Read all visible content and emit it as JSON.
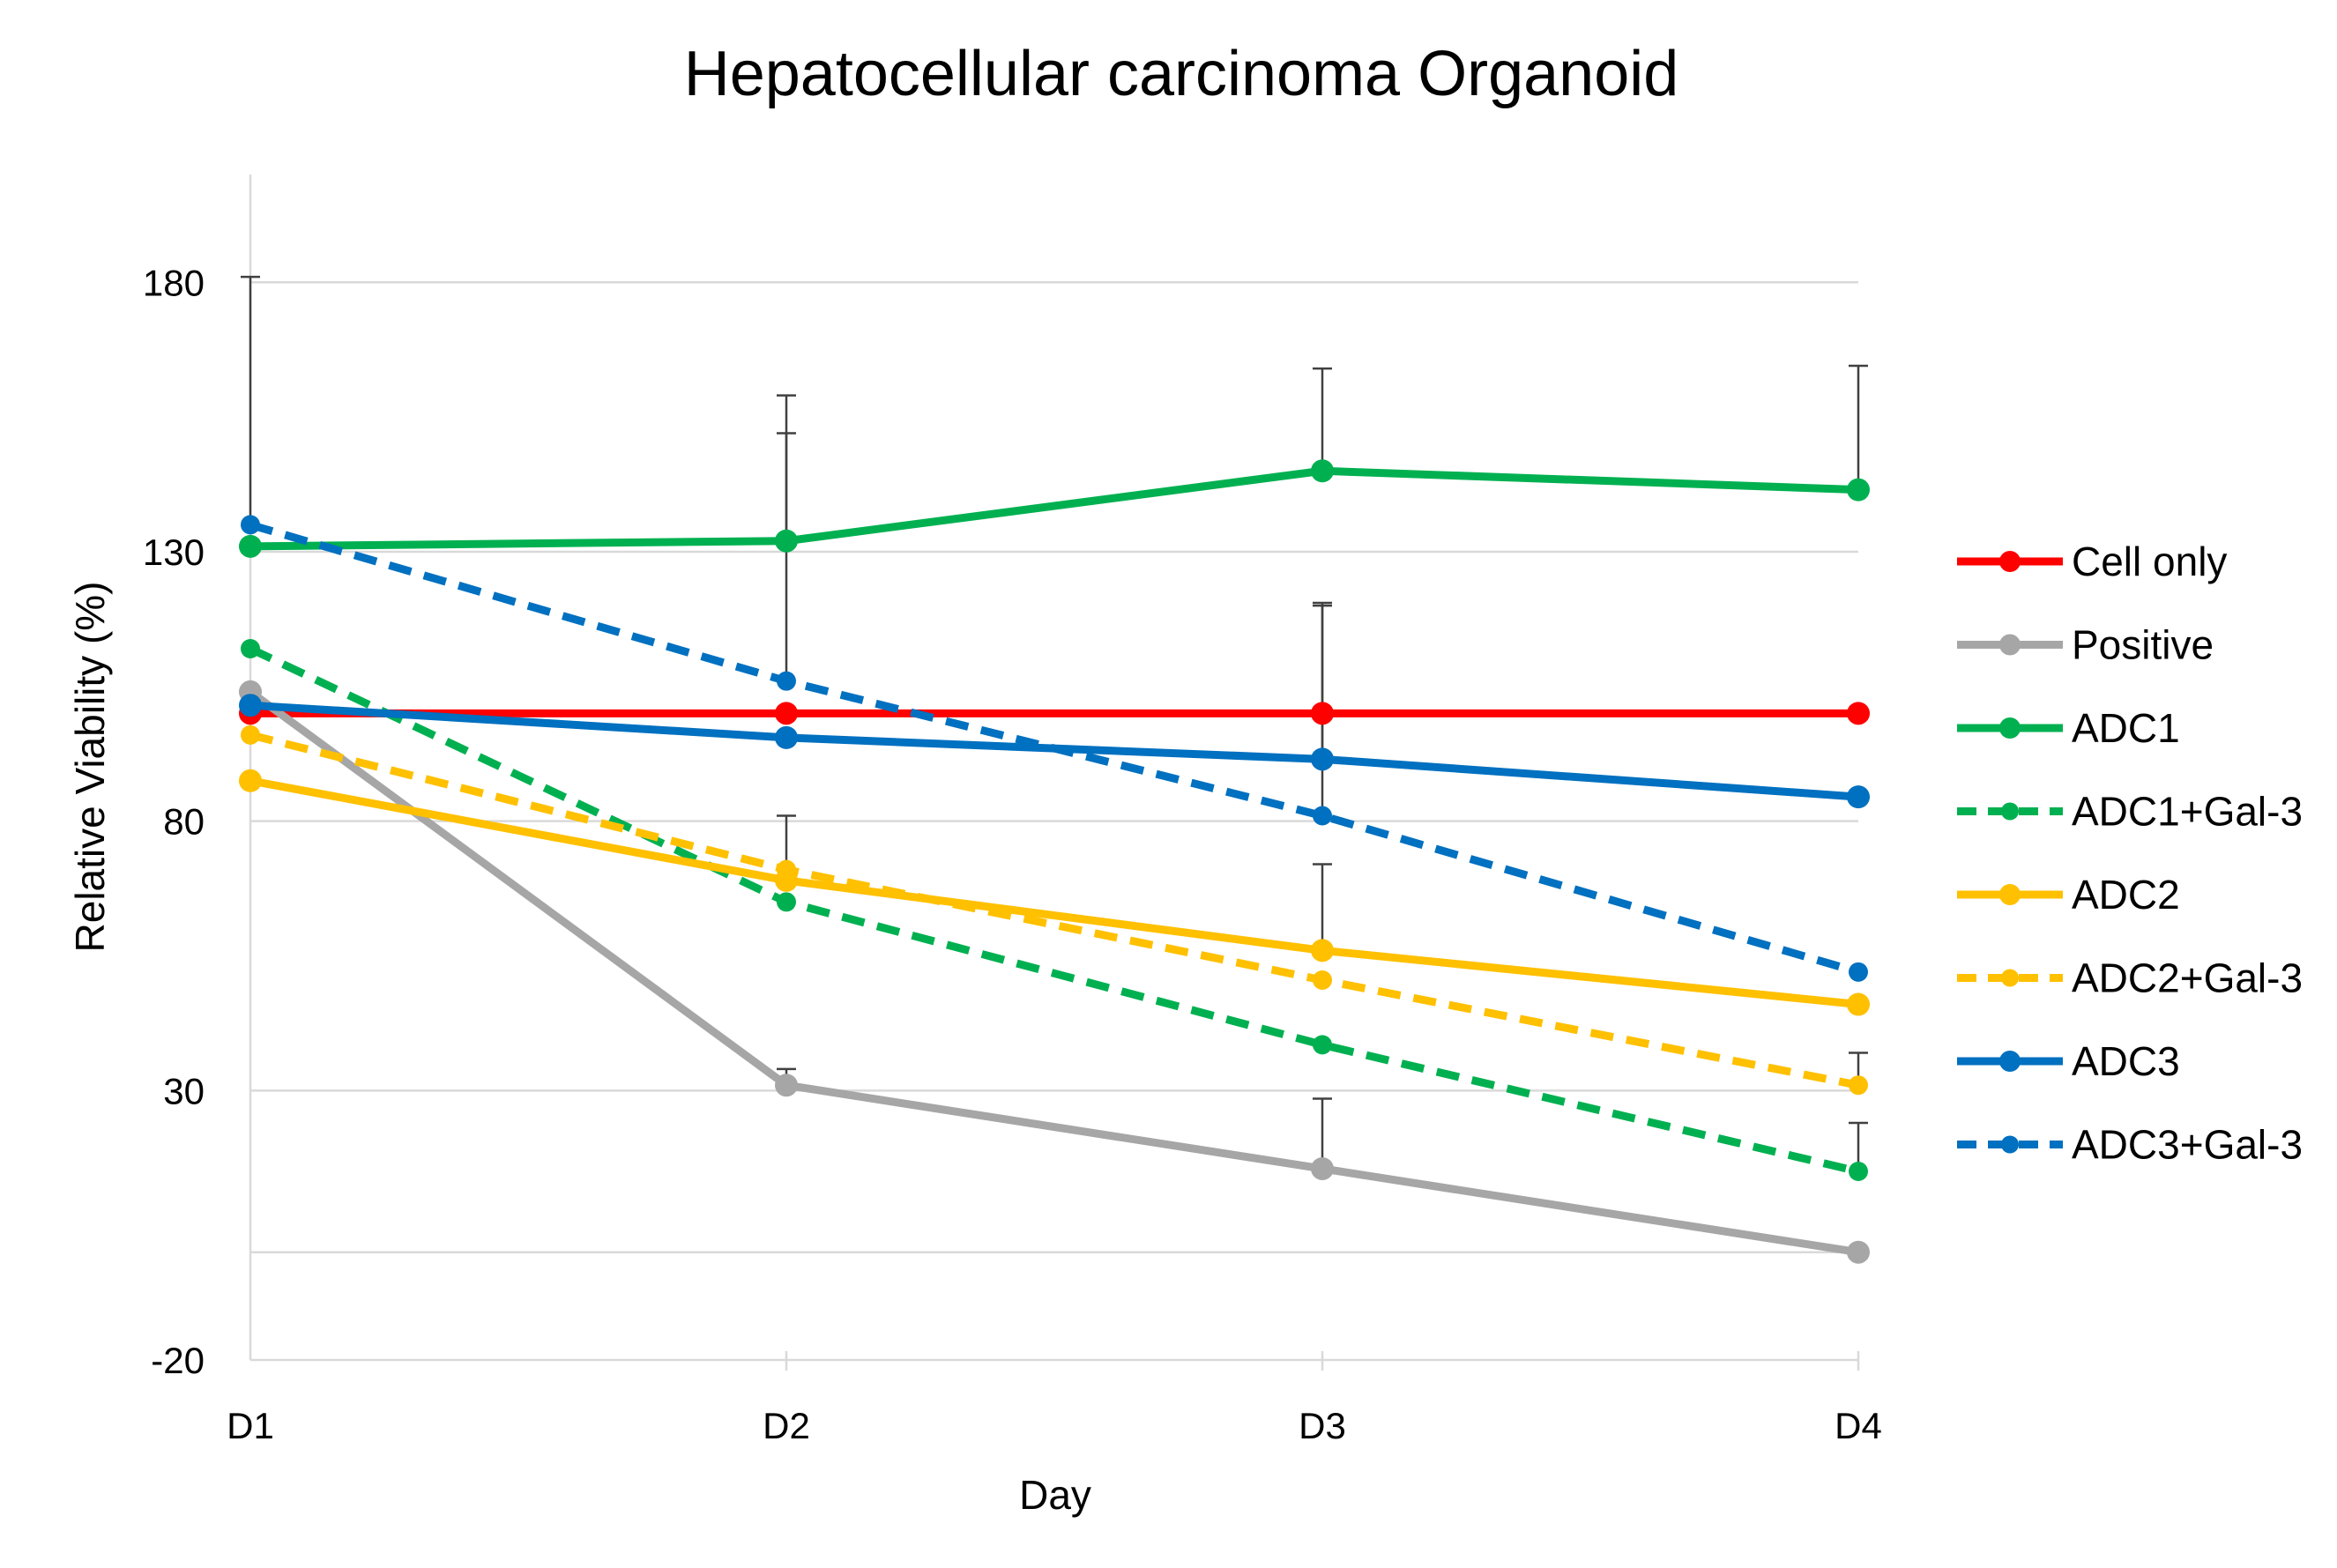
{
  "chart_data": {
    "type": "line",
    "title": "Hepatocellular carcinoma Organoid",
    "xlabel": "Day",
    "ylabel": "Relative Viability (%)",
    "categories": [
      "D1",
      "D2",
      "D3",
      "D4"
    ],
    "ylim": [
      -20,
      200
    ],
    "yticks": [
      -20,
      30,
      80,
      130,
      180
    ],
    "grid": true,
    "legend_position": "right",
    "series": [
      {
        "name": "Cell only",
        "color": "#ff0000",
        "dashed": false,
        "values": [
          100,
          100,
          100,
          100
        ],
        "err": [
          0,
          0,
          0,
          0
        ]
      },
      {
        "name": "Positive",
        "color": "#a6a6a6",
        "dashed": false,
        "values": [
          104,
          31,
          15.5,
          0
        ],
        "err": [
          0,
          3,
          13,
          0
        ]
      },
      {
        "name": "ADC1",
        "color": "#00b050",
        "dashed": false,
        "values": [
          131,
          132,
          145,
          141.5
        ],
        "err": [
          0,
          20,
          19,
          23
        ]
      },
      {
        "name": "ADC1+Gal-3",
        "color": "#00b050",
        "dashed": true,
        "values": [
          112,
          65,
          38.5,
          15
        ],
        "err": [
          0,
          0,
          0,
          9
        ]
      },
      {
        "name": "ADC2",
        "color": "#ffc000",
        "dashed": false,
        "values": [
          87.5,
          69,
          56,
          46
        ],
        "err": [
          0,
          0,
          16,
          0
        ]
      },
      {
        "name": "ADC2+Gal-3",
        "color": "#ffc000",
        "dashed": true,
        "values": [
          96,
          71,
          50.5,
          31
        ],
        "err": [
          0,
          10,
          0,
          6
        ]
      },
      {
        "name": "ADC3",
        "color": "#0070c0",
        "dashed": false,
        "values": [
          101.5,
          95.5,
          91.5,
          84.5
        ],
        "err": [
          0,
          0,
          29,
          0
        ]
      },
      {
        "name": "ADC3+Gal-3",
        "color": "#0070c0",
        "dashed": true,
        "values": [
          135,
          106,
          81,
          52
        ],
        "err": [
          46,
          53,
          39,
          0
        ]
      }
    ]
  }
}
